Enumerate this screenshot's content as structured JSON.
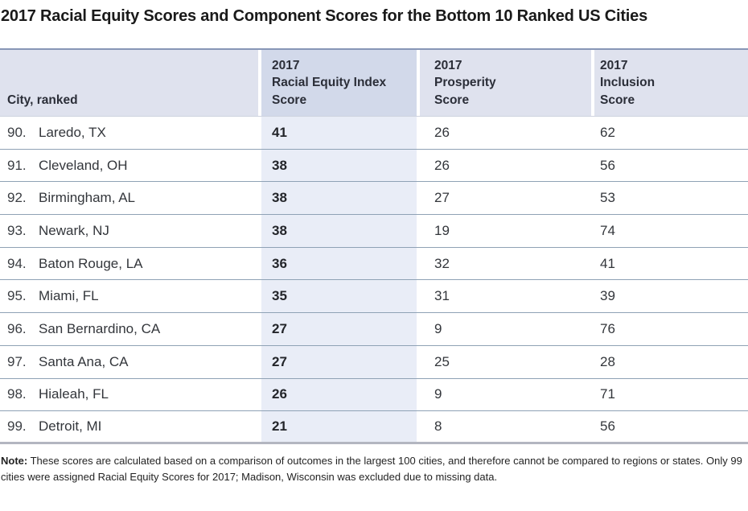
{
  "title": "2017 Racial Equity Scores and Component Scores for the Bottom 10 Ranked US Cities",
  "table": {
    "headers": {
      "city": "City, ranked",
      "index": "2017\nRacial Equity Index\nScore",
      "prosperity": "2017\nProsperity\nScore",
      "inclusion": "2017\nInclusion\nScore"
    },
    "rows": [
      {
        "rank": "90.",
        "city": "Laredo, TX",
        "index": "41",
        "prosperity": "26",
        "inclusion": "62"
      },
      {
        "rank": "91.",
        "city": "Cleveland, OH",
        "index": "38",
        "prosperity": "26",
        "inclusion": "56"
      },
      {
        "rank": "92.",
        "city": "Birmingham, AL",
        "index": "38",
        "prosperity": "27",
        "inclusion": "53"
      },
      {
        "rank": "93.",
        "city": "Newark, NJ",
        "index": "38",
        "prosperity": "19",
        "inclusion": "74"
      },
      {
        "rank": "94.",
        "city": "Baton Rouge, LA",
        "index": "36",
        "prosperity": "32",
        "inclusion": "41"
      },
      {
        "rank": "95.",
        "city": "Miami, FL",
        "index": "35",
        "prosperity": "31",
        "inclusion": "39"
      },
      {
        "rank": "96.",
        "city": "San Bernardino, CA",
        "index": "27",
        "prosperity": "9",
        "inclusion": "76"
      },
      {
        "rank": "97.",
        "city": "Santa Ana, CA",
        "index": "27",
        "prosperity": "25",
        "inclusion": "28"
      },
      {
        "rank": "98.",
        "city": "Hialeah, FL",
        "index": "26",
        "prosperity": "9",
        "inclusion": "71"
      },
      {
        "rank": "99.",
        "city": "Detroit, MI",
        "index": "21",
        "prosperity": "8",
        "inclusion": "56"
      }
    ]
  },
  "note": {
    "label": "Note:",
    "text": " These scores are calculated based on a comparison of outcomes in the largest 100 cities, and therefore cannot be compared to regions or states. Only 99 cities were assigned Racial Equity Scores for 2017; Madison, Wisconsin was excluded due to missing data."
  },
  "colors": {
    "header_bg": "#dfe2ee",
    "header_highlight_bg": "#d2d9ea",
    "row_highlight_bg": "#e9edf7",
    "top_border": "#8796b6",
    "row_separator": "#8fa2b5",
    "bottom_border": "#b3b6c0",
    "title_text": "#1a1a1a",
    "body_text": "#33363b"
  },
  "chart_data": {
    "type": "table",
    "title": "2017 Racial Equity Scores and Component Scores for the Bottom 10 Ranked US Cities",
    "columns": [
      "City, ranked",
      "2017 Racial Equity Index Score",
      "2017 Prosperity Score",
      "2017 Inclusion Score"
    ],
    "rows": [
      [
        "90. Laredo, TX",
        41,
        26,
        62
      ],
      [
        "91. Cleveland, OH",
        38,
        26,
        56
      ],
      [
        "92. Birmingham, AL",
        38,
        27,
        53
      ],
      [
        "93. Newark, NJ",
        38,
        19,
        74
      ],
      [
        "94. Baton Rouge, LA",
        36,
        32,
        41
      ],
      [
        "95. Miami, FL",
        35,
        31,
        39
      ],
      [
        "96. San Bernardino, CA",
        27,
        9,
        76
      ],
      [
        "97. Santa Ana, CA",
        27,
        25,
        28
      ],
      [
        "98. Hialeah, FL",
        26,
        9,
        71
      ],
      [
        "99. Detroit, MI",
        21,
        8,
        56
      ]
    ],
    "highlighted_column": "2017 Racial Equity Index Score",
    "note": "Note: These scores are calculated based on a comparison of outcomes in the largest 100 cities, and therefore cannot be compared to regions or states. Only 99 cities were assigned Racial Equity Scores for 2017; Madison, Wisconsin was excluded due to missing data."
  }
}
